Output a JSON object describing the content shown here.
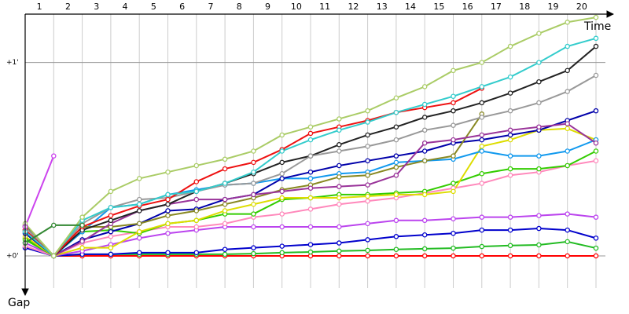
{
  "chart_data": {
    "type": "line",
    "x_label": "Time",
    "y_label": "Gap",
    "x": [
      0,
      1,
      2,
      3,
      4,
      5,
      6,
      7,
      8,
      9,
      10,
      11,
      12,
      13,
      14,
      15,
      16,
      17,
      18,
      19,
      20
    ],
    "xlim": [
      0,
      20
    ],
    "xticks": [
      {
        "value": 0.5,
        "label": "1"
      },
      {
        "value": 1.5,
        "label": "2"
      },
      {
        "value": 2.5,
        "label": "3"
      },
      {
        "value": 3.5,
        "label": "4"
      },
      {
        "value": 4.5,
        "label": "5"
      },
      {
        "value": 5.5,
        "label": "6"
      },
      {
        "value": 6.5,
        "label": "7"
      },
      {
        "value": 7.5,
        "label": "8"
      },
      {
        "value": 8.5,
        "label": "9"
      },
      {
        "value": 9.5,
        "label": "10"
      },
      {
        "value": 10.5,
        "label": "11"
      },
      {
        "value": 11.5,
        "label": "12"
      },
      {
        "value": 12.5,
        "label": "13"
      },
      {
        "value": 13.5,
        "label": "14"
      },
      {
        "value": 14.5,
        "label": "15"
      },
      {
        "value": 15.5,
        "label": "16"
      },
      {
        "value": 16.5,
        "label": "17"
      },
      {
        "value": 17.5,
        "label": "18"
      },
      {
        "value": 18.5,
        "label": "19"
      },
      {
        "value": 19.5,
        "label": "20"
      }
    ],
    "ylim": [
      -10,
      75
    ],
    "yticks": [
      {
        "value": 0,
        "label": "+0'"
      },
      {
        "value": 60,
        "label": "+1'"
      }
    ],
    "grid": true,
    "series": [
      {
        "color": "#ff0000",
        "values": [
          9,
          0,
          0,
          0,
          0,
          0,
          0,
          0,
          0,
          0,
          0,
          0,
          0,
          0,
          0,
          0,
          0,
          0,
          0,
          0,
          0
        ]
      },
      {
        "color": "#22bb22",
        "values": [
          5.5,
          0,
          0.5,
          0.5,
          0.5,
          0.5,
          0.5,
          0.5,
          0.7,
          1,
          1.2,
          1.5,
          1.7,
          2,
          2.2,
          2.4,
          2.9,
          3.2,
          3.4,
          4.4,
          2.4
        ]
      },
      {
        "color": "#0000cc",
        "values": [
          2.5,
          0,
          0.5,
          0.5,
          1,
          1,
          1,
          2,
          2.5,
          3,
          3.5,
          4,
          5,
          6,
          6.5,
          7,
          8,
          8,
          8.5,
          8,
          5.5
        ]
      },
      {
        "color": "#bb44ee",
        "values": [
          4,
          0,
          1.5,
          3.5,
          5.5,
          7,
          8,
          9,
          9,
          9,
          9,
          9,
          10,
          11,
          11,
          11.5,
          12,
          12,
          12.5,
          13,
          12
        ]
      },
      {
        "color": "#ff88bb",
        "values": [
          3,
          0,
          4,
          6,
          7.5,
          9,
          9,
          10,
          12,
          13,
          14.5,
          16,
          17,
          18,
          19.5,
          21,
          22.5,
          25,
          26,
          28,
          29.5
        ]
      },
      {
        "color": "#33cc00",
        "values": [
          5,
          0,
          7.5,
          8,
          7,
          10,
          11,
          13,
          13,
          17.5,
          18,
          19,
          19,
          19.5,
          20,
          22.5,
          25.5,
          27,
          27,
          28,
          32.5
        ]
      },
      {
        "color": "#dddd00",
        "values": [
          6,
          0,
          2.5,
          2.5,
          7.5,
          10,
          11,
          14,
          16,
          18,
          18,
          18,
          18.5,
          19,
          19,
          20,
          34,
          36,
          39,
          39.5,
          36
        ]
      },
      {
        "color": "#1199ee",
        "values": [
          7.5,
          0,
          7.5,
          15,
          16,
          19,
          20.5,
          22,
          22.5,
          24,
          24,
          25.5,
          26,
          29,
          29.5,
          30,
          32.5,
          31,
          31,
          32.5,
          36
        ]
      },
      {
        "color": "#0000aa",
        "values": [
          7,
          0,
          5,
          7.5,
          10,
          14,
          14.5,
          17.5,
          19,
          24,
          26,
          28,
          29.5,
          31,
          32.5,
          35,
          36,
          37.5,
          39,
          42,
          45
        ]
      },
      {
        "color": "#888822",
        "values": [
          8,
          0,
          9,
          9,
          10,
          12.5,
          14,
          16,
          18,
          20.5,
          22,
          24.5,
          25,
          27.5,
          29.5,
          31,
          44,
          null,
          null,
          null,
          null
        ]
      },
      {
        "color": "#993399",
        "values": [
          9,
          0,
          4.5,
          10,
          14,
          16,
          17.5,
          17.5,
          19,
          20,
          21,
          21.5,
          22,
          25,
          35,
          36,
          37.5,
          39,
          40,
          41,
          35
        ]
      },
      {
        "color": "#222222",
        "values": [
          9.5,
          0,
          8,
          11,
          14,
          16,
          20,
          22.5,
          25.5,
          29,
          31,
          34.5,
          37.5,
          40,
          43,
          45,
          47.5,
          50.5,
          54,
          57.5,
          65
        ]
      },
      {
        "color": "#999999",
        "values": [
          9,
          0,
          10,
          15,
          17.5,
          18,
          20,
          22,
          22.5,
          25.5,
          31,
          32.5,
          34,
          36,
          39,
          40.5,
          43,
          45,
          47.5,
          51,
          56
        ]
      },
      {
        "color": "#ee1111",
        "values": [
          8,
          0,
          9,
          12.5,
          15.5,
          17.5,
          23,
          27,
          29,
          33,
          38,
          40,
          42,
          44.5,
          46,
          47.5,
          52,
          null,
          null,
          null,
          null
        ]
      },
      {
        "color": "#33cccc",
        "values": [
          7.5,
          0,
          11,
          15,
          16,
          19,
          20,
          22.5,
          26,
          32.5,
          36,
          39,
          41.5,
          44.5,
          47,
          49.5,
          52.5,
          55.5,
          60,
          65,
          67.5
        ]
      },
      {
        "color": "#aacc66",
        "values": [
          10,
          0,
          12,
          20,
          24,
          26,
          28,
          30,
          32.5,
          37.5,
          40,
          42.5,
          45,
          49,
          52.5,
          57.5,
          60,
          65,
          69,
          72.5,
          74
        ]
      },
      {
        "color": "#cc44ee",
        "values": [
          9,
          31,
          null,
          null,
          null,
          null,
          null,
          null,
          null,
          null,
          null,
          null,
          null,
          null,
          null,
          null,
          null,
          null,
          null,
          null,
          null
        ]
      },
      {
        "color": "#338833",
        "values": [
          4,
          9.5,
          9.5,
          null,
          null,
          null,
          null,
          null,
          null,
          null,
          null,
          null,
          null,
          null,
          null,
          null,
          null,
          null,
          null,
          null,
          null
        ]
      }
    ]
  }
}
